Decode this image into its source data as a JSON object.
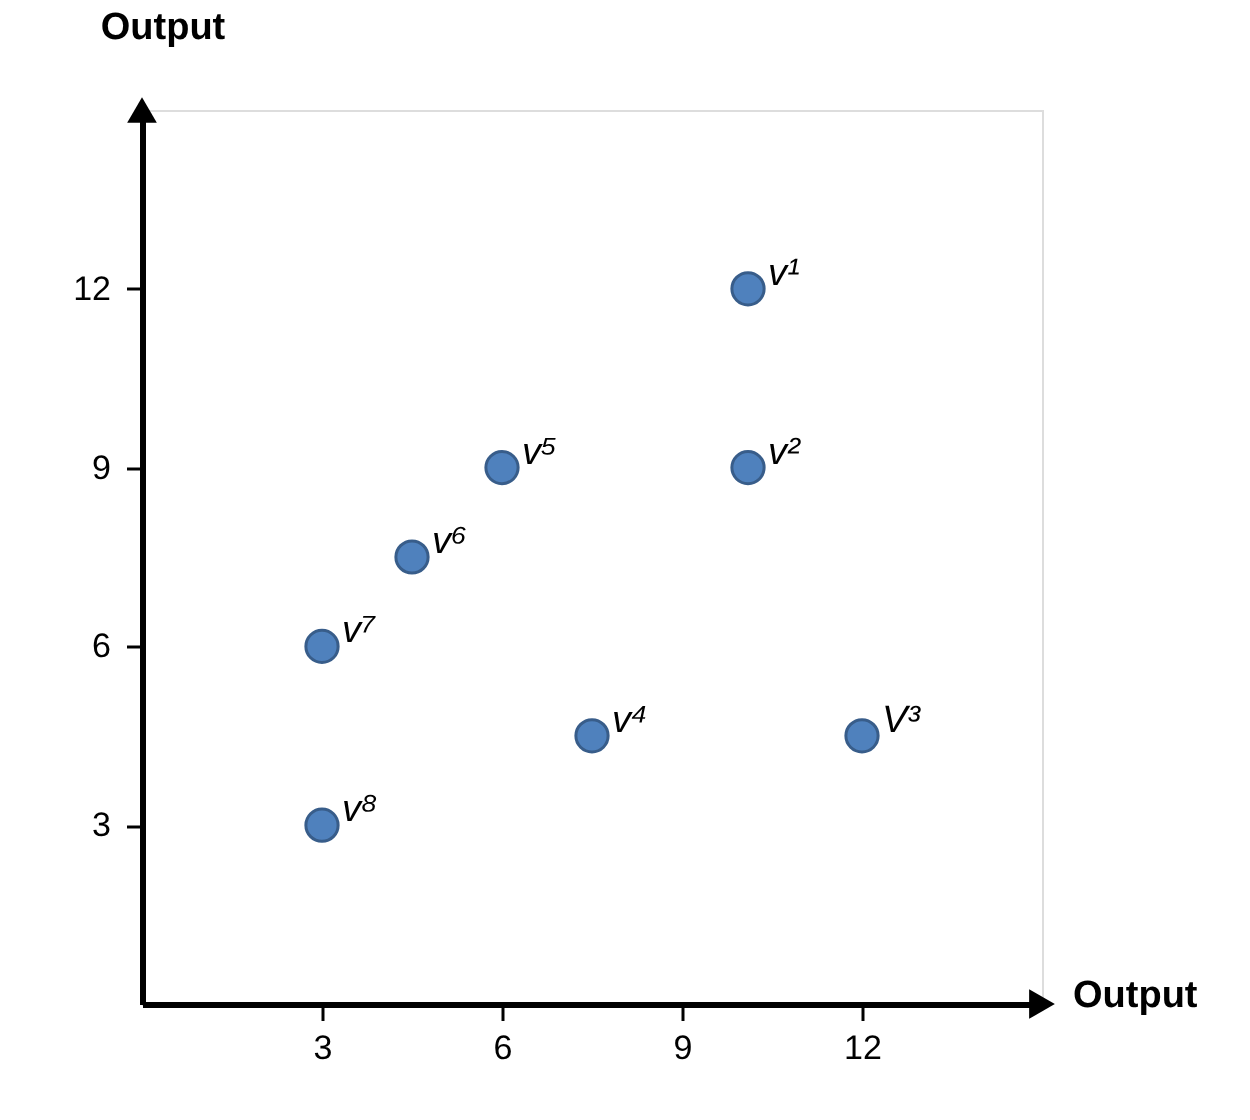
{
  "chart_data": {
    "type": "scatter",
    "xlabel": "Output",
    "ylabel": "Output",
    "x": [
      10.1,
      10.1,
      12,
      7.5,
      6,
      4.5,
      3,
      3
    ],
    "series": [
      {
        "color": "#4f81bd",
        "values": [
          12,
          9,
          4.5,
          4.5,
          9,
          7.5,
          6,
          3
        ]
      }
    ],
    "xlim": [
      0,
      15
    ],
    "ylim": [
      0,
      15
    ],
    "xticks": [
      3,
      6,
      9,
      12
    ],
    "yticks": [
      3,
      6,
      9,
      12
    ],
    "marker": "circle",
    "grid": false,
    "annotations": [
      {
        "text": "v¹",
        "x": 10.1,
        "y": 12
      },
      {
        "text": "v²",
        "x": 10.1,
        "y": 9
      },
      {
        "text": "V³",
        "x": 12,
        "y": 4.5
      },
      {
        "text": "v⁴",
        "x": 7.5,
        "y": 4.5
      },
      {
        "text": "v⁵",
        "x": 6,
        "y": 9
      },
      {
        "text": "v⁶",
        "x": 4.5,
        "y": 7.5
      },
      {
        "text": "v⁷",
        "x": 3,
        "y": 6
      },
      {
        "text": "v⁸",
        "x": 3,
        "y": 3
      }
    ]
  }
}
